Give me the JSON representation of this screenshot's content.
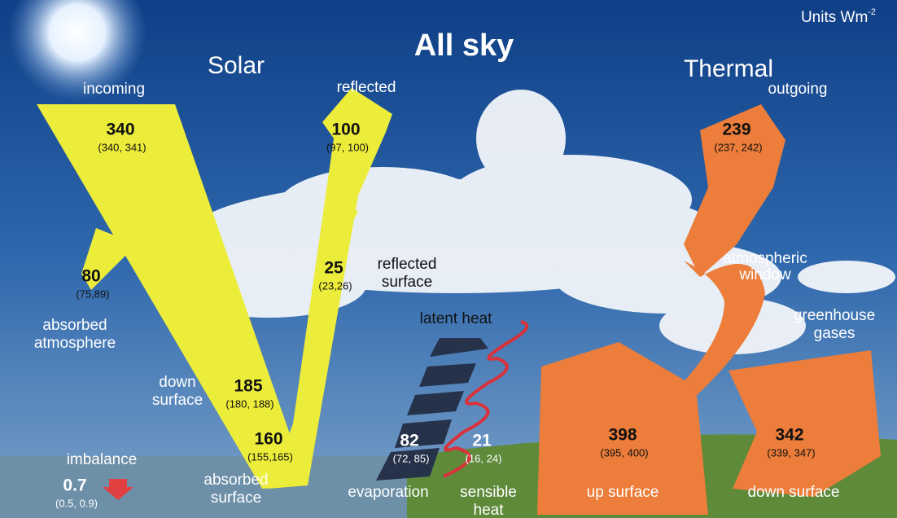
{
  "title": "All sky",
  "units": {
    "label": "Units Wm",
    "exponent": "-2"
  },
  "sections": {
    "solar": "Solar",
    "thermal": "Thermal"
  },
  "flows": [
    {
      "label": [
        "incoming"
      ],
      "value": 340,
      "range": "(340, 341)"
    },
    {
      "label": [
        "reflected"
      ],
      "value": 100,
      "range": "(97, 100)"
    },
    {
      "label": [
        "absorbed",
        "atmosphere"
      ],
      "value": 80,
      "range": "(75,89)"
    },
    {
      "label": [
        "reflected",
        "surface"
      ],
      "value": 25,
      "range": "(23,26)"
    },
    {
      "label": [
        "down",
        "surface"
      ],
      "value": 185,
      "range": "(180, 188)"
    },
    {
      "label": [
        "absorbed",
        "surface"
      ],
      "value": 160,
      "range": "(155,165)"
    },
    {
      "label": [
        "imbalance"
      ],
      "value": 0.7,
      "range": "(0.5, 0.9)"
    },
    {
      "label": [
        "evaporation"
      ],
      "value": 82,
      "range": "(72, 85)"
    },
    {
      "label": [
        "sensible",
        "heat"
      ],
      "value": 21,
      "range": "(16, 24)"
    },
    {
      "label": [
        "up surface"
      ],
      "value": 398,
      "range": "(395, 400)"
    },
    {
      "label": [
        "down surface"
      ],
      "value": 342,
      "range": "(339, 347)"
    },
    {
      "label": [
        "outgoing"
      ],
      "value": 239,
      "range": "(237, 242)"
    }
  ],
  "notes": {
    "latent_heat": "latent heat",
    "atmospheric_window": [
      "atmospheric",
      "window"
    ],
    "greenhouse_gases": [
      "greenhouse",
      "gases"
    ]
  }
}
